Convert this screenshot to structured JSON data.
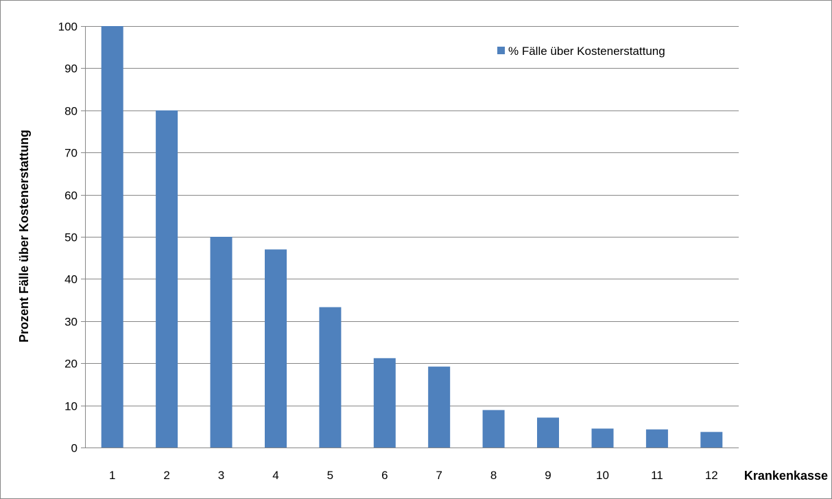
{
  "chart_data": {
    "type": "bar",
    "categories": [
      "1",
      "2",
      "3",
      "4",
      "5",
      "6",
      "7",
      "8",
      "9",
      "10",
      "11",
      "12"
    ],
    "series": [
      {
        "name": "% Fälle über Kostenerstattung",
        "color": "#4F81BD",
        "values": [
          100,
          80,
          50,
          47,
          33.3,
          21.2,
          19.2,
          8.9,
          7.1,
          4.5,
          4.3,
          3.7
        ]
      }
    ],
    "title": "",
    "xlabel": "Krankenkasse",
    "ylabel": "Prozent Fälle über Kostenerstattung",
    "ylim": [
      0,
      100
    ],
    "yticks": [
      "0",
      "10",
      "20",
      "30",
      "40",
      "50",
      "60",
      "70",
      "80",
      "90",
      "100"
    ],
    "grid": true,
    "legend_position": "top-right",
    "colors": {
      "gridline": "#868686",
      "border": "#868686"
    }
  }
}
